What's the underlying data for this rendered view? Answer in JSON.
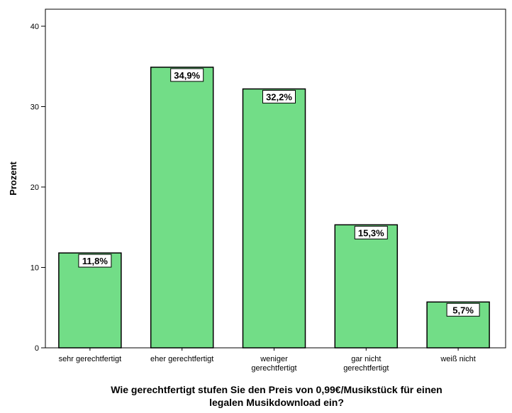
{
  "chart_data": {
    "type": "bar",
    "categories": [
      [
        "sehr gerechtfertigt"
      ],
      [
        "eher gerechtfertigt"
      ],
      [
        "weniger",
        "gerechtfertigt"
      ],
      [
        "gar nicht",
        "gerechtfertigt"
      ],
      [
        "weiß nicht"
      ]
    ],
    "values": [
      11.8,
      34.9,
      32.2,
      15.3,
      5.7
    ],
    "data_labels": [
      "11,8%",
      "34,9%",
      "32,2%",
      "15,3%",
      "5,7%"
    ],
    "ylabel": "Prozent",
    "xlabel": [
      "Wie gerechtfertigt stufen Sie den Preis von 0,99€/Musikstück für einen",
      "legalen Musikdownload ein?"
    ],
    "ylim": [
      0,
      42
    ],
    "yticks": [
      0,
      10,
      20,
      30,
      40
    ],
    "grid": false,
    "colors": {
      "bar_fill": "#72DD87",
      "bar_stroke": "#000000",
      "label_bg": "#ffffff"
    }
  }
}
